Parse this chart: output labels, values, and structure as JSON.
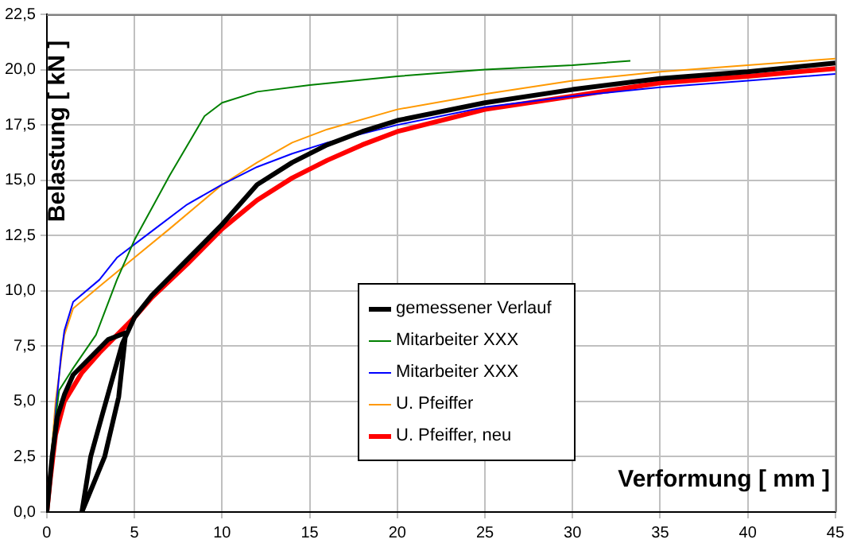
{
  "chart_data": {
    "type": "line",
    "xlabel": "Verformung [ mm ]",
    "ylabel": "Belastung [ kN ]",
    "xlim": [
      0,
      45
    ],
    "xticks": [
      0,
      5,
      10,
      15,
      20,
      25,
      30,
      35,
      40,
      45
    ],
    "ylim": [
      0,
      22.5
    ],
    "yticks": [
      {
        "value": 0,
        "label": "0,0"
      },
      {
        "value": 2.5,
        "label": "2,5"
      },
      {
        "value": 5,
        "label": "5,0"
      },
      {
        "value": 7.5,
        "label": "7,5"
      },
      {
        "value": 10,
        "label": "10,0"
      },
      {
        "value": 12.5,
        "label": "12,5"
      },
      {
        "value": 15,
        "label": "15,0"
      },
      {
        "value": 17.5,
        "label": "17,5"
      },
      {
        "value": 20,
        "label": "20,0"
      },
      {
        "value": 22.5,
        "label": "22,5"
      }
    ],
    "grid": true,
    "legend": "bottom",
    "marker": "none",
    "line_style": "solid",
    "series": [
      {
        "name": "gemessener Verlauf",
        "color": "#000000",
        "x": [
          0,
          0.3,
          0.6,
          1,
          1.5,
          2.5,
          3.5,
          4.5,
          4.1,
          3.3,
          2,
          2.5,
          3.2,
          4.3,
          5,
          6,
          8,
          10,
          12,
          14,
          16,
          18,
          20,
          25,
          30,
          35,
          40,
          45
        ],
        "values": [
          0,
          2.5,
          4.3,
          5.3,
          6.2,
          7,
          7.8,
          8.1,
          5.2,
          2.5,
          0,
          2.5,
          4.5,
          7.6,
          8.8,
          9.8,
          11.4,
          13.0,
          14.8,
          15.8,
          16.6,
          17.2,
          17.7,
          18.5,
          19.1,
          19.6,
          19.9,
          20.3
        ]
      },
      {
        "name": "Mitarbeiter XXX",
        "color": "#008000",
        "x": [
          0,
          0.3,
          0.7,
          1.5,
          2.8,
          4,
          5,
          7,
          9,
          10,
          12,
          15,
          20,
          25,
          30,
          33.3
        ],
        "values": [
          0,
          3,
          5.5,
          6.5,
          8,
          10.5,
          12.3,
          15.2,
          17.9,
          18.5,
          19.0,
          19.3,
          19.7,
          20.0,
          20.2,
          20.4
        ]
      },
      {
        "name": "Mitarbeiter XXX",
        "color": "#0000ff",
        "x": [
          0,
          0.3,
          0.5,
          0.8,
          1,
          1.5,
          3,
          4,
          6,
          8,
          10,
          12,
          14,
          16,
          20,
          25,
          30,
          35,
          40,
          45
        ],
        "values": [
          0,
          2.5,
          4.5,
          7,
          8.2,
          9.5,
          10.5,
          11.5,
          12.7,
          13.9,
          14.8,
          15.6,
          16.2,
          16.7,
          17.5,
          18.3,
          18.8,
          19.2,
          19.5,
          19.8
        ]
      },
      {
        "name": "U. Pfeiffer",
        "color": "#ff9900",
        "x": [
          0,
          0.2,
          0.5,
          1,
          1.5,
          3,
          5,
          7,
          10,
          12,
          14,
          16,
          20,
          25,
          30,
          35,
          40,
          45
        ],
        "values": [
          0,
          2,
          5,
          8,
          9.2,
          10.2,
          11.5,
          12.8,
          14.8,
          15.8,
          16.7,
          17.3,
          18.2,
          18.9,
          19.5,
          19.9,
          20.2,
          20.5
        ]
      },
      {
        "name": "U. Pfeiffer, neu",
        "color": "#ff0000",
        "x": [
          0,
          0.2,
          0.5,
          1,
          2,
          3,
          4,
          5,
          6,
          8,
          10,
          12,
          14,
          16,
          18,
          20,
          25,
          30,
          35,
          40,
          45
        ],
        "values": [
          0,
          1.5,
          3.5,
          5,
          6.3,
          7.2,
          8,
          8.8,
          9.7,
          11.2,
          12.8,
          14.1,
          15.1,
          15.9,
          16.6,
          17.2,
          18.2,
          18.8,
          19.4,
          19.7,
          20.05
        ]
      }
    ]
  }
}
